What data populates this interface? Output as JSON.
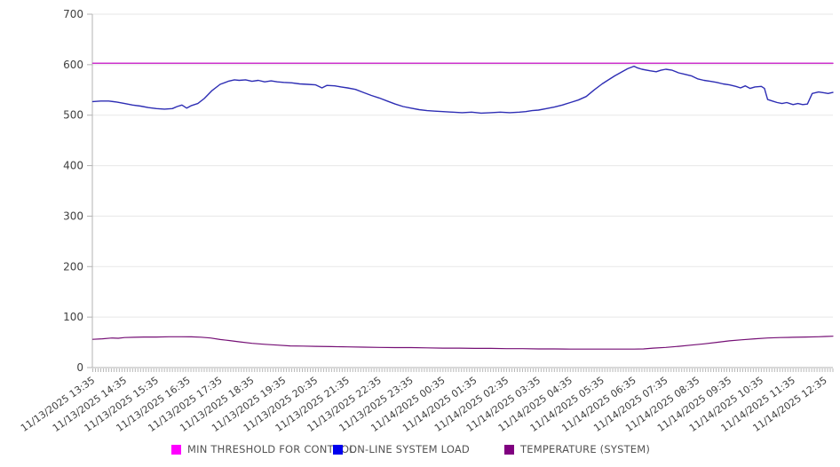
{
  "page": {
    "background": "#ffffff"
  },
  "colors": {
    "gridline": "#e7e7e7",
    "axis": "#b3b3b3",
    "minor_tick": "#b8b8b8",
    "tick_text": "#404040",
    "legend_text": "#545454"
  },
  "chart_data": {
    "type": "line",
    "title": "",
    "xlabel": "",
    "ylabel": "",
    "ylim": [
      0,
      700
    ],
    "y_ticks": [
      0,
      100,
      200,
      300,
      400,
      500,
      600,
      700
    ],
    "grid": "horizontal",
    "legend_position": "bottom",
    "x_hours_span": 23.25,
    "minor_tick_interval_minutes": 5,
    "x_tick_labels": [
      "11/13/2025 13:35",
      "11/13/2025 14:35",
      "11/13/2025 15:35",
      "11/13/2025 16:35",
      "11/13/2025 17:35",
      "11/13/2025 18:35",
      "11/13/2025 19:35",
      "11/13/2025 20:35",
      "11/13/2025 21:35",
      "11/13/2025 22:35",
      "11/13/2025 23:35",
      "11/14/2025 00:35",
      "11/14/2025 01:35",
      "11/14/2025 02:35",
      "11/14/2025 03:35",
      "11/14/2025 04:35",
      "11/14/2025 05:35",
      "11/14/2025 06:35",
      "11/14/2025 07:35",
      "11/14/2025 08:35",
      "11/14/2025 09:35",
      "11/14/2025 10:35",
      "11/14/2025 11:35",
      "11/14/2025 12:35"
    ],
    "series": [
      {
        "name": "MIN THRESHOLD FOR CONTROL",
        "color": "#ff00ff",
        "line_color": "#cc33cc",
        "line_width": 1.5,
        "points": [
          [
            0,
            603
          ],
          [
            23.25,
            603
          ]
        ]
      },
      {
        "name": "ON-LINE SYSTEM LOAD",
        "color": "#0000ee",
        "line_color": "#2d2db4",
        "line_width": 1.4,
        "points": [
          [
            0,
            527
          ],
          [
            0.25,
            528
          ],
          [
            0.5,
            528
          ],
          [
            0.75,
            526
          ],
          [
            1,
            523
          ],
          [
            1.25,
            520
          ],
          [
            1.5,
            518
          ],
          [
            1.75,
            515
          ],
          [
            2,
            513
          ],
          [
            2.25,
            512
          ],
          [
            2.5,
            513
          ],
          [
            2.65,
            517
          ],
          [
            2.8,
            520
          ],
          [
            2.95,
            514
          ],
          [
            3.1,
            519
          ],
          [
            3.3,
            523
          ],
          [
            3.5,
            533
          ],
          [
            3.75,
            549
          ],
          [
            4,
            561
          ],
          [
            4.25,
            567
          ],
          [
            4.45,
            570
          ],
          [
            4.6,
            569
          ],
          [
            4.8,
            570
          ],
          [
            5,
            567
          ],
          [
            5.2,
            569
          ],
          [
            5.4,
            566
          ],
          [
            5.6,
            568
          ],
          [
            5.8,
            566
          ],
          [
            6,
            565
          ],
          [
            6.25,
            564
          ],
          [
            6.5,
            562
          ],
          [
            6.75,
            561
          ],
          [
            7,
            560
          ],
          [
            7.2,
            554
          ],
          [
            7.35,
            559
          ],
          [
            7.6,
            558
          ],
          [
            7.8,
            556
          ],
          [
            8,
            554
          ],
          [
            8.25,
            551
          ],
          [
            8.5,
            545
          ],
          [
            8.75,
            539
          ],
          [
            9,
            534
          ],
          [
            9.25,
            528
          ],
          [
            9.5,
            522
          ],
          [
            9.75,
            517
          ],
          [
            10,
            514
          ],
          [
            10.25,
            511
          ],
          [
            10.5,
            509
          ],
          [
            10.75,
            508
          ],
          [
            11,
            507
          ],
          [
            11.3,
            506
          ],
          [
            11.6,
            505
          ],
          [
            11.9,
            506
          ],
          [
            12.2,
            504
          ],
          [
            12.5,
            505
          ],
          [
            12.8,
            506
          ],
          [
            13.1,
            505
          ],
          [
            13.4,
            506
          ],
          [
            13.6,
            507
          ],
          [
            13.8,
            509
          ],
          [
            14,
            510
          ],
          [
            14.25,
            513
          ],
          [
            14.5,
            516
          ],
          [
            14.75,
            520
          ],
          [
            15,
            525
          ],
          [
            15.25,
            530
          ],
          [
            15.5,
            537
          ],
          [
            15.75,
            550
          ],
          [
            16,
            562
          ],
          [
            16.2,
            570
          ],
          [
            16.4,
            578
          ],
          [
            16.6,
            585
          ],
          [
            16.8,
            592
          ],
          [
            17,
            597
          ],
          [
            17.1,
            594
          ],
          [
            17.25,
            591
          ],
          [
            17.5,
            588
          ],
          [
            17.7,
            586
          ],
          [
            17.85,
            589
          ],
          [
            18,
            591
          ],
          [
            18.2,
            589
          ],
          [
            18.4,
            584
          ],
          [
            18.6,
            581
          ],
          [
            18.8,
            578
          ],
          [
            19,
            572
          ],
          [
            19.2,
            569
          ],
          [
            19.4,
            567
          ],
          [
            19.6,
            565
          ],
          [
            19.8,
            562
          ],
          [
            20,
            560
          ],
          [
            20.2,
            557
          ],
          [
            20.35,
            554
          ],
          [
            20.5,
            558
          ],
          [
            20.65,
            553
          ],
          [
            20.8,
            556
          ],
          [
            21,
            557
          ],
          [
            21.1,
            553
          ],
          [
            21.2,
            531
          ],
          [
            21.35,
            528
          ],
          [
            21.5,
            525
          ],
          [
            21.65,
            523
          ],
          [
            21.8,
            525
          ],
          [
            22,
            521
          ],
          [
            22.15,
            523
          ],
          [
            22.3,
            521
          ],
          [
            22.45,
            522
          ],
          [
            22.6,
            543
          ],
          [
            22.8,
            546
          ],
          [
            23,
            544
          ],
          [
            23.1,
            543
          ],
          [
            23.25,
            545
          ]
        ]
      },
      {
        "name": "TEMPERATURE (SYSTEM)",
        "color": "#800080",
        "line_color": "#750f75",
        "line_width": 1.2,
        "points": [
          [
            0,
            56
          ],
          [
            0.3,
            57
          ],
          [
            0.6,
            58.5
          ],
          [
            0.8,
            58
          ],
          [
            1,
            59.5
          ],
          [
            1.3,
            60
          ],
          [
            1.6,
            60.5
          ],
          [
            2,
            60.5
          ],
          [
            2.4,
            61
          ],
          [
            2.8,
            61
          ],
          [
            3.1,
            60.8
          ],
          [
            3.4,
            60.2
          ],
          [
            3.7,
            58.5
          ],
          [
            4,
            55.5
          ],
          [
            4.3,
            53.5
          ],
          [
            4.6,
            51
          ],
          [
            5,
            48
          ],
          [
            5.4,
            46
          ],
          [
            5.8,
            44.5
          ],
          [
            6.2,
            43
          ],
          [
            6.6,
            42.5
          ],
          [
            7,
            42
          ],
          [
            7.5,
            41.5
          ],
          [
            8,
            41
          ],
          [
            8.5,
            40.5
          ],
          [
            9,
            40
          ],
          [
            9.5,
            39.5
          ],
          [
            10,
            39.5
          ],
          [
            10.5,
            39
          ],
          [
            11,
            38.5
          ],
          [
            11.5,
            38.5
          ],
          [
            12,
            38
          ],
          [
            12.5,
            38
          ],
          [
            13,
            37.5
          ],
          [
            13.5,
            37.5
          ],
          [
            14,
            37
          ],
          [
            14.5,
            37
          ],
          [
            15,
            36.5
          ],
          [
            15.5,
            36.5
          ],
          [
            16,
            36.5
          ],
          [
            16.5,
            36.5
          ],
          [
            17,
            36.5
          ],
          [
            17.3,
            37
          ],
          [
            17.6,
            38.5
          ],
          [
            18,
            40
          ],
          [
            18.4,
            42
          ],
          [
            18.8,
            44.5
          ],
          [
            19.2,
            47
          ],
          [
            19.6,
            50
          ],
          [
            20,
            53
          ],
          [
            20.4,
            55
          ],
          [
            20.8,
            57
          ],
          [
            21.2,
            58.5
          ],
          [
            21.6,
            59.5
          ],
          [
            22,
            60
          ],
          [
            22.4,
            60.5
          ],
          [
            22.8,
            61
          ],
          [
            23,
            61.5
          ],
          [
            23.25,
            62
          ]
        ]
      }
    ]
  }
}
